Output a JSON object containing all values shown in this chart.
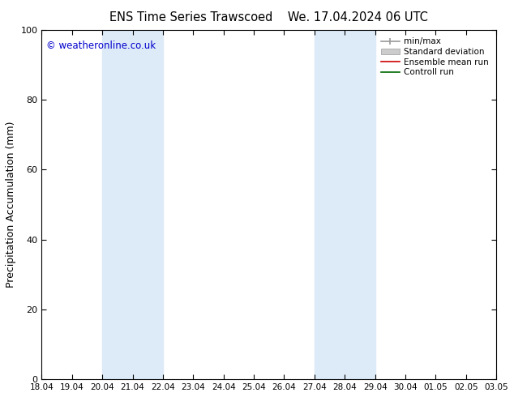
{
  "title_left": "ENS Time Series Trawscoed",
  "title_right": "We. 17.04.2024 06 UTC",
  "ylabel": "Precipitation Accumulation (mm)",
  "ylim": [
    0,
    100
  ],
  "yticks": [
    0,
    20,
    40,
    60,
    80,
    100
  ],
  "x_labels": [
    "18.04",
    "19.04",
    "20.04",
    "21.04",
    "22.04",
    "23.04",
    "24.04",
    "25.04",
    "26.04",
    "27.04",
    "28.04",
    "29.04",
    "30.04",
    "01.05",
    "02.05",
    "03.05"
  ],
  "shaded_regions": [
    {
      "x_start_label": "20.04",
      "x_end_label": "22.04",
      "color": "#ddeaf8"
    },
    {
      "x_start_label": "27.04",
      "x_end_label": "29.04",
      "color": "#ddeaf8"
    }
  ],
  "watermark": "© weatheronline.co.uk",
  "watermark_color": "#0000cc",
  "legend_items": [
    {
      "label": "min/max",
      "type": "minmax",
      "color": "#999999"
    },
    {
      "label": "Standard deviation",
      "type": "patch",
      "color": "#cccccc"
    },
    {
      "label": "Ensemble mean run",
      "type": "line",
      "color": "#cc0000",
      "lw": 1.2
    },
    {
      "label": "Controll run",
      "type": "line",
      "color": "#006600",
      "lw": 1.2
    }
  ],
  "background_color": "#ffffff",
  "figsize": [
    6.34,
    4.9
  ],
  "dpi": 100
}
